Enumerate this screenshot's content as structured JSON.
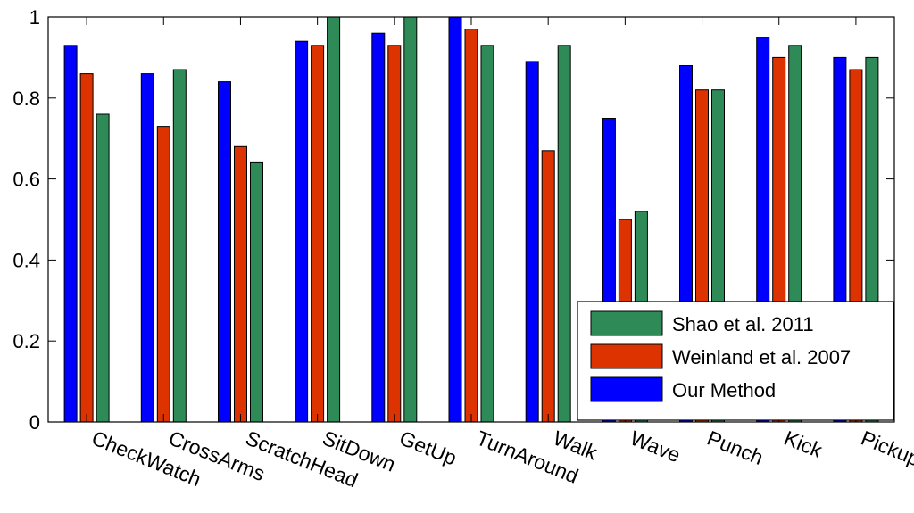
{
  "chart_data": {
    "type": "bar",
    "categories": [
      "CheckWatch",
      "CrossArms",
      "ScratchHead",
      "SitDown",
      "GetUp",
      "TurnAround",
      "Walk",
      "Wave",
      "Punch",
      "Kick",
      "Pickup"
    ],
    "series": [
      {
        "name": "Our Method",
        "color": "#0000ff",
        "values": [
          0.93,
          0.86,
          0.84,
          0.94,
          0.96,
          1.0,
          0.89,
          0.75,
          0.88,
          0.95,
          0.9
        ]
      },
      {
        "name": "Weinland et al. 2007",
        "color": "#dd3300",
        "values": [
          0.86,
          0.73,
          0.68,
          0.93,
          0.93,
          0.97,
          0.67,
          0.5,
          0.82,
          0.9,
          0.87
        ]
      },
      {
        "name": "Shao et al. 2011",
        "color": "#2e8b57",
        "values": [
          0.76,
          0.87,
          0.64,
          1.0,
          1.0,
          0.93,
          0.93,
          0.52,
          0.82,
          0.93,
          0.9
        ]
      }
    ],
    "ylim": [
      0,
      1
    ],
    "yticks": [
      "0",
      "0.2",
      "0.4",
      "0.6",
      "0.8",
      "1"
    ],
    "xlabel": "",
    "ylabel": "",
    "legend": {
      "placement": "bottom-right",
      "order": [
        "Shao et al. 2011",
        "Weinland et al. 2007",
        "Our Method"
      ]
    },
    "grid": false
  }
}
